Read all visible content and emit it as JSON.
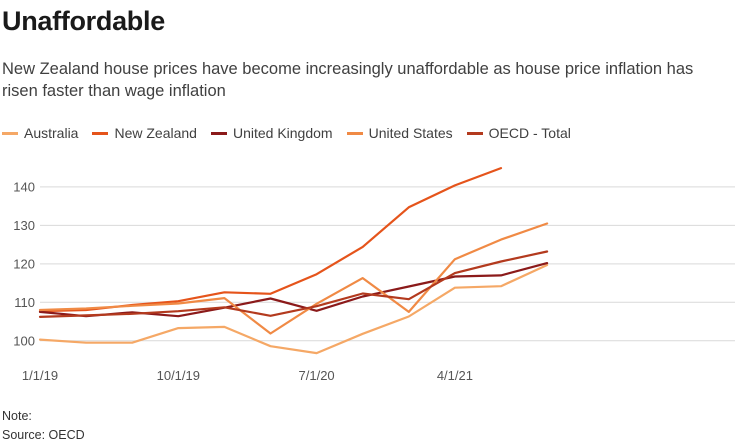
{
  "title": "Unaffordable",
  "subtitle": "New Zealand house prices have become increasingly unaffordable as house price inflation has risen faster than wage inflation",
  "footer": {
    "note": "Note:",
    "source": "Source: OECD"
  },
  "chart_data": {
    "type": "line",
    "title": "Unaffordable",
    "xlabel": "",
    "ylabel": "",
    "ylim": [
      95,
      147
    ],
    "yticks": [
      100,
      110,
      120,
      130,
      140
    ],
    "x": [
      "2019-Q1",
      "2019-Q2",
      "2019-Q3",
      "2019-Q4",
      "2020-Q1",
      "2020-Q2",
      "2020-Q3",
      "2020-Q4",
      "2021-Q1",
      "2021-Q2",
      "2021-Q3",
      "2021-Q4"
    ],
    "xtick_labels": [
      {
        "label": "1/1/19",
        "index": 0
      },
      {
        "label": "10/1/19",
        "index": 3
      },
      {
        "label": "7/1/20",
        "index": 6
      },
      {
        "label": "4/1/21",
        "index": 9
      }
    ],
    "series": [
      {
        "name": "Australia",
        "color": "#f5a866",
        "values": [
          100.3,
          99.5,
          99.5,
          103.3,
          103.6,
          98.6,
          96.8,
          101.8,
          106.3,
          113.8,
          114.2,
          119.7
        ]
      },
      {
        "name": "New Zealand",
        "color": "#e5541b",
        "values": [
          107.7,
          108.0,
          109.3,
          110.3,
          112.6,
          112.2,
          117.3,
          124.4,
          134.7,
          140.4,
          144.9,
          null
        ]
      },
      {
        "name": "United Kingdom",
        "color": "#8b1a1a",
        "values": [
          107.5,
          106.4,
          107.4,
          106.4,
          108.6,
          111.0,
          107.8,
          111.5,
          114.1,
          116.7,
          117.0,
          120.2
        ]
      },
      {
        "name": "United States",
        "color": "#f08a45",
        "values": [
          108.0,
          108.4,
          109.1,
          109.7,
          111.1,
          101.9,
          109.6,
          116.3,
          107.5,
          121.2,
          126.3,
          130.5
        ]
      },
      {
        "name": "OECD - Total",
        "color": "#b33a1e",
        "values": [
          106.2,
          106.6,
          107.0,
          107.7,
          108.7,
          106.5,
          109.0,
          112.3,
          110.8,
          117.6,
          120.6,
          123.2
        ]
      }
    ]
  }
}
